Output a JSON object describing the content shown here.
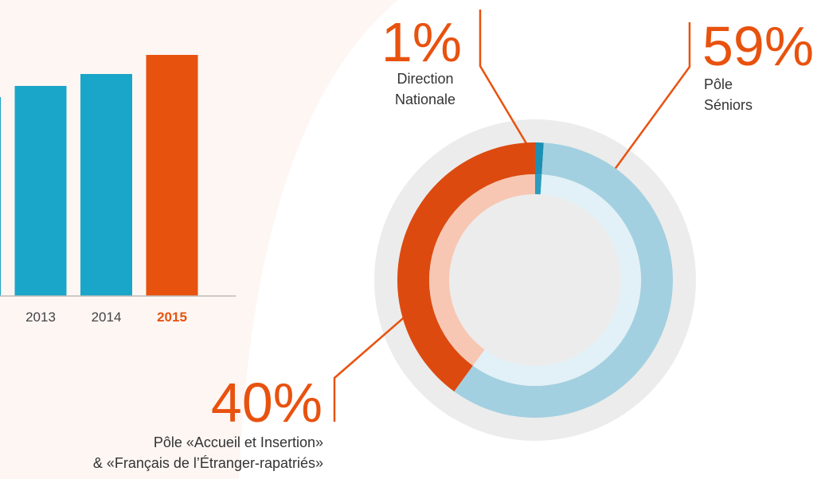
{
  "chart_data": [
    {
      "type": "bar",
      "categories": [
        null,
        "2013",
        "2014",
        "2015"
      ],
      "values": [
        250,
        264,
        279,
        303
      ],
      "colors": [
        "#1aa6c8",
        "#1aa6c8",
        "#1aa6c8",
        "#e8520f"
      ],
      "ylim": [
        0,
        310
      ]
    },
    {
      "type": "pie",
      "categories": [
        [
          "Direction",
          "Nationale"
        ],
        [
          "Pôle",
          "Séniors"
        ],
        [
          "Pôle «Accueil et Insertion»",
          "& «Français de l’Étranger-rapatriés»"
        ]
      ],
      "values": [
        1,
        59,
        40
      ],
      "value_labels": [
        "1%",
        "59%",
        "40%"
      ],
      "colors": [
        "#1c8fb2",
        "#a3d0e0",
        "#dc4a10"
      ]
    }
  ]
}
